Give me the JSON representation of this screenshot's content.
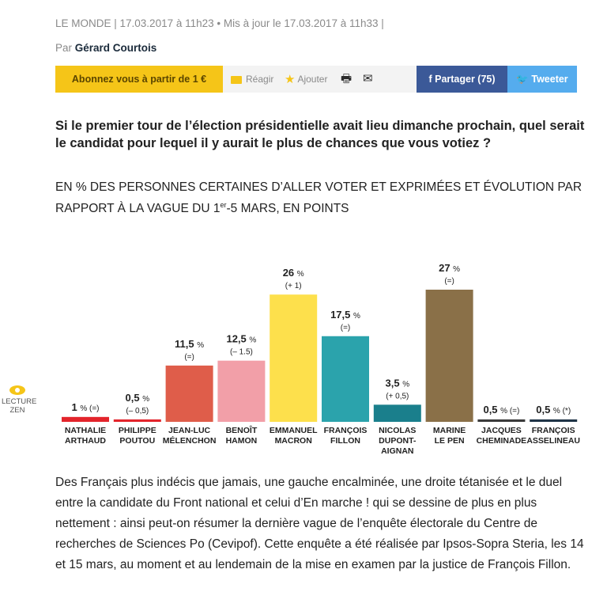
{
  "header": {
    "meta": "LE MONDE | 17.03.2017 à 11h23 • Mis à jour le 17.03.2017 à 11h33 |",
    "byline_prefix": "Par",
    "author": "Gérard Courtois"
  },
  "toolbar": {
    "subscribe_label": "Abonnez vous à partir de 1 €",
    "react_label": "Réagir",
    "add_label": "Ajouter",
    "share_label": "f  Partager (75)",
    "tweet_label": "Tweeter"
  },
  "question": {
    "title": "Si le premier tour de l’élection présidentielle avait lieu dimanche prochain, quel serait le candidat pour lequel il y aurait le plus de chances que vous votiez ?",
    "subtitle_part1": "EN % DES PERSONNES CERTAINES D’ALLER VOTER ET EXPRIMÉES ET ÉVOLUTION PAR RAPPORT À LA VAGUE DU 1",
    "subtitle_sup": "er",
    "subtitle_part2": "-5 MARS, EN POINTS"
  },
  "chart_data": {
    "type": "bar",
    "categories": [
      [
        "NATHALIE",
        "ARTHAUD"
      ],
      [
        "PHILIPPE",
        "POUTOU"
      ],
      [
        "JEAN-LUC",
        "MÉLENCHON"
      ],
      [
        "BENOÎT",
        "HAMON"
      ],
      [
        "EMMANUEL",
        "MACRON"
      ],
      [
        "FRANÇOIS",
        "FILLON"
      ],
      [
        "NICOLAS",
        "DUPONT-",
        "AIGNAN"
      ],
      [
        "MARINE",
        "LE PEN"
      ],
      [
        "JACQUES",
        "CHEMINADE"
      ],
      [
        "FRANÇOIS",
        "ASSELINEAU"
      ]
    ],
    "values": [
      1,
      0.5,
      11.5,
      12.5,
      26,
      17.5,
      3.5,
      27,
      0.5,
      0.5
    ],
    "value_labels": [
      "1",
      "0,5",
      "11,5",
      "12,5",
      "26",
      "17,5",
      "3,5",
      "27",
      "0,5",
      "0,5"
    ],
    "change_labels": [
      "(=)",
      "(– 0,5)",
      "(=)",
      "(– 1.5)",
      "(+ 1)",
      "(=)",
      "(+ 0,5)",
      "(=)",
      "(=)",
      "(*)"
    ],
    "colors": [
      "#e3242b",
      "#e3242b",
      "#df5d4a",
      "#f29fa8",
      "#fde04c",
      "#2ba3ac",
      "#1a7f8c",
      "#8a7048",
      "#3a3a3a",
      "#1f3346"
    ],
    "unit": "%",
    "ylim": [
      0,
      27
    ]
  },
  "zen": {
    "line1": "LECTURE",
    "line2": "ZEN"
  },
  "article": {
    "text": "Des Français plus indécis que jamais, une gauche encalminée, une droite tétanisée et le duel entre la candidate du Front national et celui d’En marche ! qui se dessine de plus en plus nettement : ainsi peut-on résumer la dernière vague de l’enquête électorale du Centre de recherches de Sciences Po (Cevipof). Cette enquête a été réalisée par Ipsos-Sopra Steria, les 14 et 15 mars, au moment et au lendemain de la mise en examen par la justice de François Fillon."
  }
}
